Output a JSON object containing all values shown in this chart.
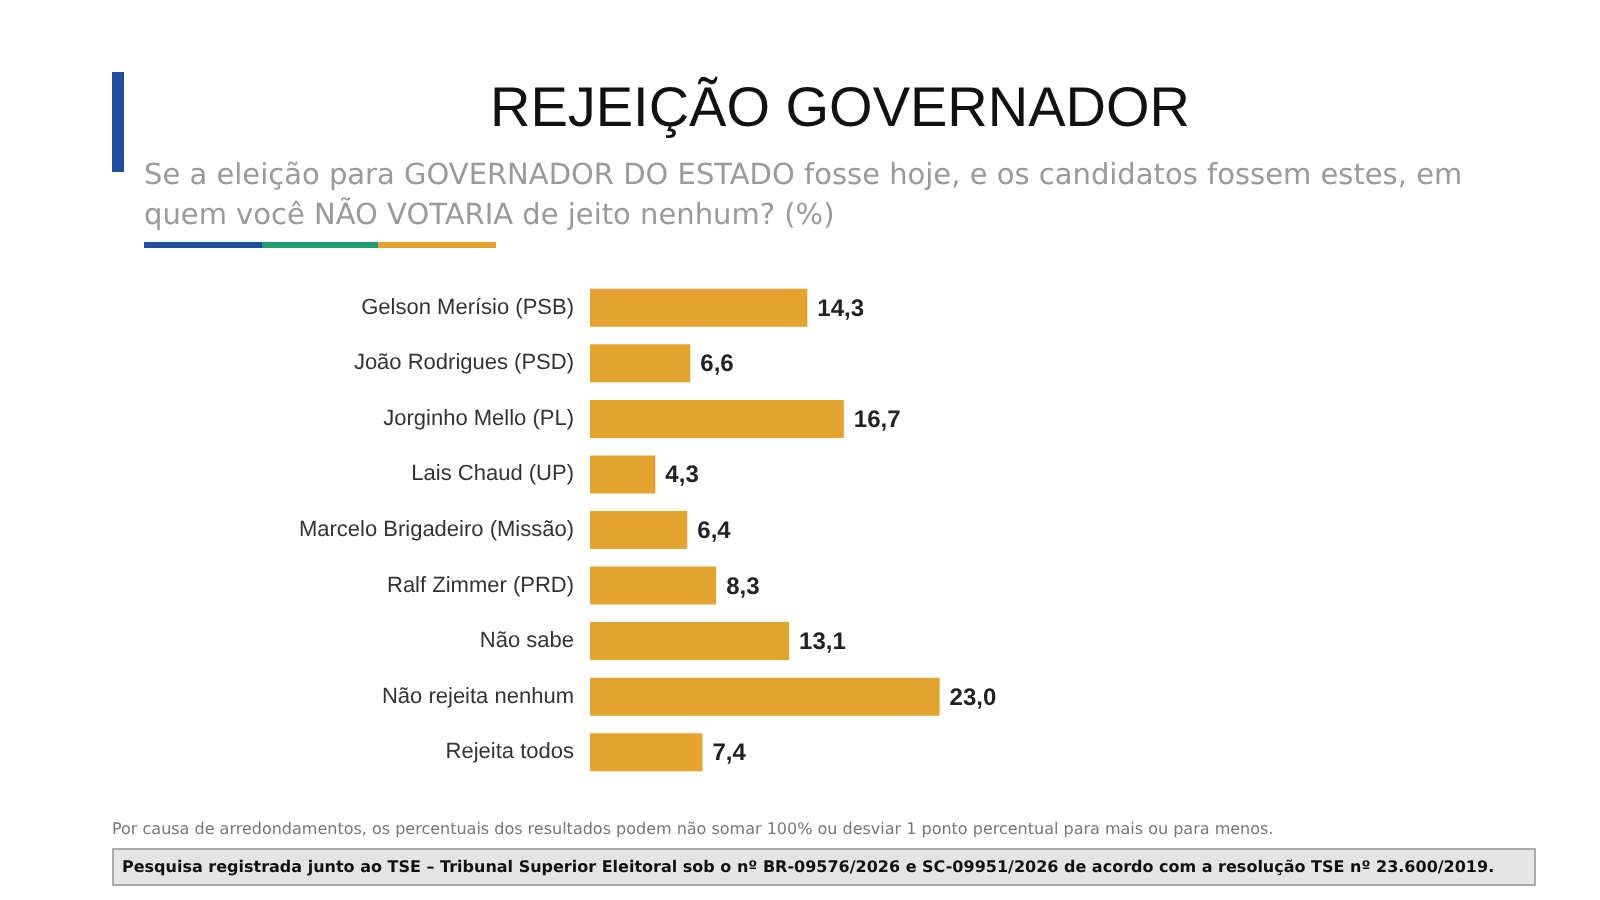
{
  "chart_data": {
    "type": "bar",
    "orientation": "horizontal",
    "title": "REJEIÇÃO GOVERNADOR",
    "subtitle": "Se a eleição para GOVERNADOR DO ESTADO fosse hoje, e os candidatos fossem estes, em quem você NÃO VOTARIA de jeito nenhum? (%)",
    "categories": [
      "Gelson Merísio (PSB)",
      "João Rodrigues (PSD)",
      "Jorginho Mello (PL)",
      "Lais Chaud (UP)",
      "Marcelo Brigadeiro (Missão)",
      "Ralf Zimmer (PRD)",
      "Não sabe",
      "Não rejeita nenhum",
      "Rejeita todos"
    ],
    "values": [
      14.3,
      6.6,
      16.7,
      4.3,
      6.4,
      8.3,
      13.1,
      23.0,
      7.4
    ],
    "value_labels": [
      "14,3",
      "6,6",
      "16,7",
      "4,3",
      "6,4",
      "8,3",
      "13,1",
      "23,0",
      "7,4"
    ],
    "color": "#e3a32e",
    "annotations": [
      "Por causa de arredondamentos, os percentuais dos resultados podem não somar 100% ou desviar 1 ponto percentual para mais ou para menos.",
      "Pesquisa registrada junto ao TSE – Tribunal Superior Eleitoral sob o nº BR-09576/2026 e SC-09951/2026 de acordo com a resolução TSE nº 23.600/2019."
    ]
  }
}
